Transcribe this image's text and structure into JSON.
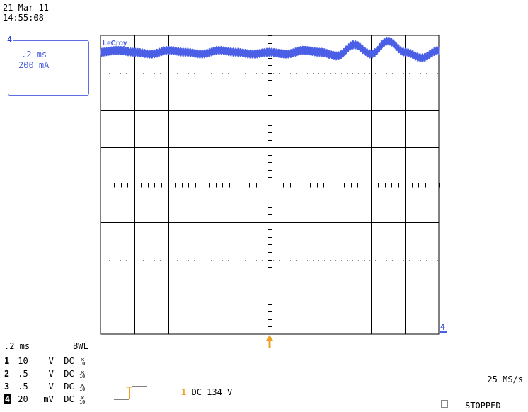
{
  "header": {
    "date": "21-Mar-11",
    "time": "14:55:08"
  },
  "trace_box": {
    "channel": "4",
    "timebase": ".2 ms",
    "scale": "200 mA"
  },
  "brand": "LeCroy",
  "bottom": {
    "timebase": ".2 ms",
    "bwl": "BWL",
    "channels": [
      {
        "num": "1",
        "scale": "10",
        "unit": "V",
        "coupling": "DC",
        "probe": "x10"
      },
      {
        "num": "2",
        "scale": ".5",
        "unit": "V",
        "coupling": "DC",
        "probe": "x10"
      },
      {
        "num": "3",
        "scale": ".5",
        "unit": "V",
        "coupling": "DC",
        "probe": "x10"
      },
      {
        "num": "4",
        "scale": "20",
        "unit": "mV",
        "coupling": "DC",
        "probe": "x10"
      }
    ],
    "trigger": {
      "channel": "1",
      "text": "DC 134 V"
    },
    "sample_rate": "25 MS/s",
    "status": "STOPPED"
  },
  "colors": {
    "trace": "#4a5fe6",
    "trigger": "#f0a020",
    "grid": "#000000",
    "dots": "#888888"
  },
  "chart_data": {
    "type": "line",
    "title": "",
    "grid": true,
    "divisions": {
      "x": 10,
      "y": 8
    },
    "series": [
      {
        "channel": "4",
        "description": "current waveform with high-frequency ripple, slow oscillation near top of screen",
        "x_divisions": [
          0,
          0.5,
          1,
          1.5,
          2,
          2.5,
          3,
          3.5,
          4,
          4.5,
          5,
          5.5,
          6,
          6.5,
          7,
          7.5,
          8,
          8.5,
          9,
          9.5,
          10
        ],
        "y_divisions": [
          3.55,
          3.6,
          3.55,
          3.5,
          3.6,
          3.55,
          3.5,
          3.6,
          3.55,
          3.5,
          3.55,
          3.5,
          3.6,
          3.55,
          3.45,
          3.75,
          3.5,
          3.85,
          3.55,
          3.4,
          3.6
        ]
      }
    ]
  }
}
